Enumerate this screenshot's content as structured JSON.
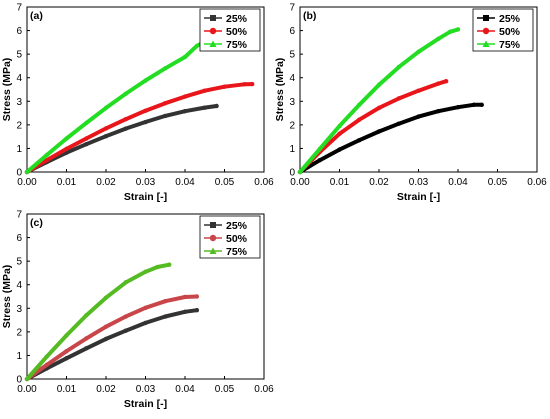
{
  "chart_data": [
    {
      "type": "line",
      "panel_label": "(a)",
      "xlabel": "Strain [-]",
      "ylabel": "Stress (MPa)",
      "xlim": [
        0,
        0.06
      ],
      "ylim": [
        0,
        7
      ],
      "xticks": [
        "0.00",
        "0.01",
        "0.02",
        "0.03",
        "0.04",
        "0.05",
        "0.06"
      ],
      "yticks": [
        "0",
        "1",
        "2",
        "3",
        "4",
        "5",
        "6",
        "7"
      ],
      "legend_position": "top-right",
      "series": [
        {
          "name": "25%",
          "color": "#333333",
          "x": [
            0,
            0.005,
            0.01,
            0.015,
            0.02,
            0.025,
            0.03,
            0.035,
            0.04,
            0.045,
            0.048
          ],
          "y": [
            0,
            0.42,
            0.82,
            1.18,
            1.52,
            1.84,
            2.12,
            2.38,
            2.58,
            2.73,
            2.8
          ]
        },
        {
          "name": "50%",
          "color": "#e8161b",
          "x": [
            0,
            0.005,
            0.01,
            0.015,
            0.02,
            0.025,
            0.03,
            0.035,
            0.04,
            0.045,
            0.05,
            0.055,
            0.057
          ],
          "y": [
            0,
            0.5,
            0.98,
            1.42,
            1.85,
            2.24,
            2.6,
            2.92,
            3.2,
            3.45,
            3.62,
            3.72,
            3.73
          ]
        },
        {
          "name": "75%",
          "color": "#22dd22",
          "x": [
            0,
            0.005,
            0.01,
            0.015,
            0.02,
            0.025,
            0.03,
            0.035,
            0.04,
            0.043,
            0.045
          ],
          "y": [
            0,
            0.72,
            1.42,
            2.08,
            2.72,
            3.32,
            3.88,
            4.4,
            4.88,
            5.35,
            5.53
          ]
        }
      ]
    },
    {
      "type": "line",
      "panel_label": "(b)",
      "xlabel": "Strain [-]",
      "ylabel": "Stress (MPa)",
      "xlim": [
        0,
        0.06
      ],
      "ylim": [
        0,
        7
      ],
      "xticks": [
        "0.00",
        "0.01",
        "0.02",
        "0.03",
        "0.04",
        "0.05",
        "0.06"
      ],
      "yticks": [
        "0",
        "1",
        "2",
        "3",
        "4",
        "5",
        "6",
        "7"
      ],
      "legend_position": "top-right",
      "series": [
        {
          "name": "25%",
          "color": "#000000",
          "x": [
            0,
            0.005,
            0.01,
            0.015,
            0.02,
            0.025,
            0.03,
            0.035,
            0.04,
            0.044,
            0.046
          ],
          "y": [
            0,
            0.5,
            0.95,
            1.35,
            1.72,
            2.05,
            2.35,
            2.58,
            2.75,
            2.85,
            2.85
          ]
        },
        {
          "name": "50%",
          "color": "#e8161b",
          "x": [
            0,
            0.005,
            0.01,
            0.015,
            0.02,
            0.025,
            0.03,
            0.035,
            0.037
          ],
          "y": [
            0,
            0.85,
            1.62,
            2.22,
            2.72,
            3.12,
            3.45,
            3.75,
            3.85
          ]
        },
        {
          "name": "75%",
          "color": "#22dd22",
          "x": [
            0,
            0.005,
            0.01,
            0.015,
            0.02,
            0.025,
            0.03,
            0.035,
            0.038,
            0.04
          ],
          "y": [
            0,
            0.98,
            1.95,
            2.85,
            3.7,
            4.45,
            5.1,
            5.65,
            5.95,
            6.05
          ]
        }
      ]
    },
    {
      "type": "line",
      "panel_label": "(c)",
      "xlabel": "Strain [-]",
      "ylabel": "Stress (MPa)",
      "xlim": [
        0,
        0.06
      ],
      "ylim": [
        0,
        7
      ],
      "xticks": [
        "0.00",
        "0.01",
        "0.02",
        "0.03",
        "0.04",
        "0.05",
        "0.06"
      ],
      "yticks": [
        "0",
        "1",
        "2",
        "3",
        "4",
        "5",
        "6",
        "7"
      ],
      "legend_position": "top-right",
      "series": [
        {
          "name": "25%",
          "color": "#333333",
          "x": [
            0,
            0.005,
            0.01,
            0.015,
            0.02,
            0.025,
            0.03,
            0.035,
            0.04,
            0.043
          ],
          "y": [
            0,
            0.45,
            0.88,
            1.3,
            1.7,
            2.05,
            2.38,
            2.65,
            2.85,
            2.92
          ]
        },
        {
          "name": "50%",
          "color": "#c8464a",
          "x": [
            0,
            0.005,
            0.01,
            0.015,
            0.02,
            0.025,
            0.03,
            0.035,
            0.04,
            0.043
          ],
          "y": [
            0,
            0.6,
            1.18,
            1.72,
            2.22,
            2.65,
            3.02,
            3.3,
            3.48,
            3.5
          ]
        },
        {
          "name": "75%",
          "color": "#55bb22",
          "x": [
            0,
            0.005,
            0.01,
            0.015,
            0.02,
            0.025,
            0.03,
            0.033,
            0.036
          ],
          "y": [
            0,
            0.95,
            1.85,
            2.7,
            3.45,
            4.1,
            4.55,
            4.75,
            4.85
          ]
        }
      ]
    }
  ]
}
